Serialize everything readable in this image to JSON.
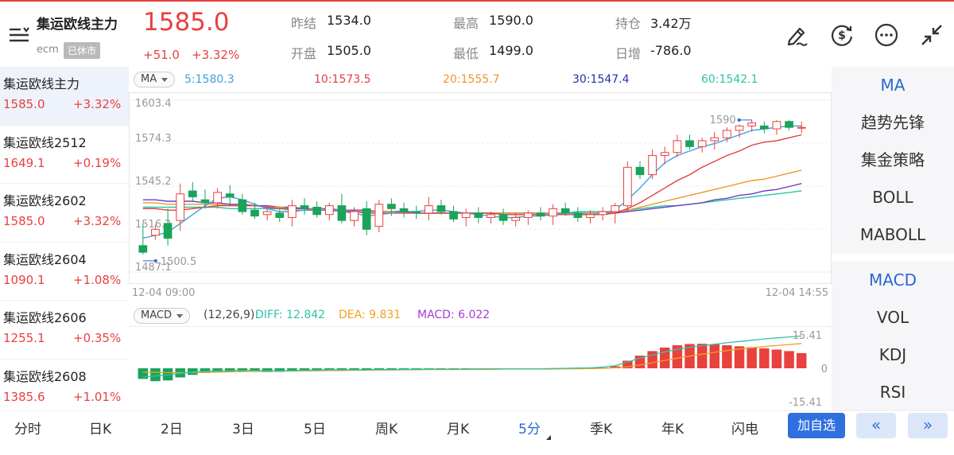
{
  "header": {
    "title": "集运欧线主力",
    "exchange": "ecm",
    "status": "已休市",
    "last_price": "1585.0",
    "change": "+51.0",
    "change_pct": "+3.32%",
    "stats": {
      "prev_close_label": "昨结",
      "prev_close": "1534.0",
      "high_label": "最高",
      "high": "1590.0",
      "open_interest_label": "持仓",
      "open_interest": "3.42万",
      "open_label": "开盘",
      "open": "1505.0",
      "low_label": "最低",
      "low": "1499.0",
      "daily_change_label": "日增",
      "daily_change": "-786.0"
    },
    "icons": [
      "menu-icon",
      "pen-icon",
      "currency-exchange-icon",
      "more-icon",
      "collapse-icon"
    ]
  },
  "contracts": [
    {
      "name": "集运欧线主力",
      "price": "1585.0",
      "pct": "+3.32%"
    },
    {
      "name": "集运欧线2512",
      "price": "1649.1",
      "pct": "+0.19%"
    },
    {
      "name": "集运欧线2602",
      "price": "1585.0",
      "pct": "+3.32%"
    },
    {
      "name": "集运欧线2604",
      "price": "1090.1",
      "pct": "+1.08%"
    },
    {
      "name": "集运欧线2606",
      "price": "1255.1",
      "pct": "+0.35%"
    },
    {
      "name": "集运欧线2608",
      "price": "1385.6",
      "pct": "+1.01%"
    }
  ],
  "ma_bar": {
    "selector": "MA",
    "ma5": "5:1580.3",
    "ma10": "10:1573.5",
    "ma20": "20:1555.7",
    "ma30": "30:1547.4",
    "ma60": "60:1542.1"
  },
  "chart_data": {
    "type": "candlestick",
    "y_ticks": [
      "1603.4",
      "1574.3",
      "1545.2",
      "1516.2",
      "1487.1"
    ],
    "ylim": [
      1487.1,
      1603.4
    ],
    "max_label": "1590",
    "min_label": "1500.5",
    "start_time": "12-04 09:00",
    "end_time": "12-04 14:55",
    "colors": {
      "up": "#e8413e",
      "down": "#1aa35a",
      "ma5": "#3fa0e0",
      "ma10": "#e04040",
      "ma20": "#f0962a",
      "ma30": "#6a3fc0",
      "ma60": "#2ec4a8"
    },
    "candles": [
      [
        1505,
        1520,
        1499,
        1500.5
      ],
      [
        1512,
        1519,
        1509,
        1516
      ],
      [
        1520,
        1530,
        1505,
        1510
      ],
      [
        1522,
        1547,
        1515,
        1540
      ],
      [
        1542,
        1548,
        1535,
        1538
      ],
      [
        1536,
        1543,
        1530,
        1534
      ],
      [
        1534,
        1544,
        1530,
        1541
      ],
      [
        1540,
        1546,
        1532,
        1538
      ],
      [
        1536,
        1540,
        1526,
        1528
      ],
      [
        1529,
        1534,
        1523,
        1525
      ],
      [
        1526,
        1532,
        1522,
        1528
      ],
      [
        1527,
        1531,
        1521,
        1524
      ],
      [
        1524,
        1536,
        1518,
        1532
      ],
      [
        1532,
        1537,
        1526,
        1530
      ],
      [
        1531,
        1535,
        1524,
        1526
      ],
      [
        1526,
        1534,
        1522,
        1532
      ],
      [
        1532,
        1540,
        1520,
        1522
      ],
      [
        1522,
        1531,
        1518,
        1528
      ],
      [
        1530,
        1535,
        1512,
        1516
      ],
      [
        1518,
        1536,
        1514,
        1533
      ],
      [
        1533,
        1537,
        1525,
        1530
      ],
      [
        1530,
        1534,
        1524,
        1528
      ],
      [
        1528,
        1532,
        1523,
        1527
      ],
      [
        1527,
        1538,
        1522,
        1532
      ],
      [
        1532,
        1536,
        1526,
        1528
      ],
      [
        1528,
        1532,
        1521,
        1523
      ],
      [
        1524,
        1530,
        1518,
        1527
      ],
      [
        1527,
        1531,
        1520,
        1524
      ],
      [
        1524,
        1528,
        1520,
        1526
      ],
      [
        1526,
        1530,
        1519,
        1522
      ],
      [
        1522,
        1527,
        1518,
        1524
      ],
      [
        1524,
        1529,
        1519,
        1527
      ],
      [
        1527,
        1531,
        1522,
        1525
      ],
      [
        1525,
        1533,
        1519,
        1530
      ],
      [
        1530,
        1534,
        1525,
        1527
      ],
      [
        1527,
        1531,
        1521,
        1524
      ],
      [
        1524,
        1529,
        1520,
        1526
      ],
      [
        1526,
        1531,
        1522,
        1528
      ],
      [
        1528,
        1534,
        1520,
        1532
      ],
      [
        1532,
        1562,
        1528,
        1558
      ],
      [
        1558,
        1562,
        1550,
        1553
      ],
      [
        1553,
        1570,
        1550,
        1566
      ],
      [
        1566,
        1572,
        1560,
        1568
      ],
      [
        1568,
        1580,
        1565,
        1576
      ],
      [
        1576,
        1580,
        1570,
        1572
      ],
      [
        1572,
        1578,
        1568,
        1576
      ],
      [
        1576,
        1582,
        1570,
        1578
      ],
      [
        1578,
        1585,
        1575,
        1583
      ],
      [
        1583,
        1587,
        1578,
        1586
      ],
      [
        1586,
        1590,
        1582,
        1588
      ],
      [
        1586,
        1589,
        1581,
        1584
      ],
      [
        1584,
        1590,
        1580,
        1589
      ],
      [
        1589,
        1590,
        1583,
        1585
      ],
      [
        1585,
        1589,
        1581,
        1585
      ]
    ],
    "ma5_vals": [
      1510,
      1512,
      1514,
      1520,
      1526,
      1532,
      1537,
      1538,
      1536,
      1533,
      1530,
      1528,
      1528,
      1529,
      1529,
      1529,
      1528,
      1527,
      1525,
      1526,
      1527,
      1528,
      1528,
      1529,
      1529,
      1528,
      1527,
      1526,
      1525,
      1524,
      1524,
      1525,
      1525,
      1526,
      1527,
      1527,
      1526,
      1527,
      1529,
      1536,
      1544,
      1553,
      1561,
      1566,
      1569,
      1572,
      1574,
      1577,
      1580,
      1583,
      1584,
      1585,
      1586,
      1586
    ],
    "ma10_vals": [
      1530,
      1530,
      1529,
      1529,
      1530,
      1531,
      1532,
      1532,
      1532,
      1532,
      1531,
      1530,
      1530,
      1530,
      1529,
      1529,
      1528,
      1528,
      1527,
      1527,
      1527,
      1527,
      1527,
      1527,
      1527,
      1527,
      1527,
      1527,
      1527,
      1526,
      1526,
      1526,
      1526,
      1526,
      1526,
      1526,
      1526,
      1526,
      1527,
      1530,
      1534,
      1539,
      1544,
      1549,
      1553,
      1558,
      1562,
      1566,
      1569,
      1573,
      1575,
      1576,
      1578,
      1580
    ],
    "ma20_vals": [
      1534,
      1534,
      1533,
      1533,
      1533,
      1533,
      1533,
      1532,
      1532,
      1532,
      1531,
      1531,
      1530,
      1530,
      1530,
      1529,
      1529,
      1528,
      1528,
      1528,
      1528,
      1527,
      1527,
      1527,
      1527,
      1527,
      1527,
      1527,
      1527,
      1527,
      1527,
      1527,
      1527,
      1527,
      1527,
      1527,
      1527,
      1527,
      1528,
      1529,
      1531,
      1533,
      1535,
      1537,
      1539,
      1541,
      1543,
      1545,
      1547,
      1549,
      1550,
      1552,
      1554,
      1556
    ],
    "ma30_vals": [
      1536,
      1536,
      1535,
      1535,
      1535,
      1534,
      1534,
      1533,
      1533,
      1532,
      1532,
      1531,
      1531,
      1530,
      1530,
      1530,
      1529,
      1529,
      1529,
      1528,
      1528,
      1528,
      1527,
      1527,
      1527,
      1527,
      1527,
      1527,
      1527,
      1527,
      1527,
      1527,
      1527,
      1527,
      1527,
      1527,
      1527,
      1527,
      1527,
      1528,
      1529,
      1530,
      1531,
      1532,
      1533,
      1534,
      1536,
      1537,
      1539,
      1540,
      1542,
      1543,
      1545,
      1547
    ],
    "ma60_vals": [
      1531,
      1531,
      1531,
      1531,
      1531,
      1531,
      1531,
      1530,
      1530,
      1530,
      1530,
      1530,
      1529,
      1529,
      1529,
      1529,
      1529,
      1528,
      1528,
      1528,
      1528,
      1528,
      1527,
      1527,
      1527,
      1527,
      1527,
      1527,
      1527,
      1527,
      1527,
      1527,
      1527,
      1527,
      1527,
      1528,
      1528,
      1528,
      1528,
      1529,
      1530,
      1531,
      1532,
      1532,
      1533,
      1534,
      1535,
      1536,
      1537,
      1538,
      1539,
      1540,
      1541,
      1542
    ]
  },
  "macd_bar": {
    "selector": "MACD",
    "params": "(12,26,9):",
    "diff": "DIFF: 12.842",
    "dea": "DEA: 9.831",
    "macd": "MACD: 6.022"
  },
  "macd_data": {
    "ylim": [
      -15.41,
      15.41
    ],
    "top_label": "15.41",
    "zero_label": "0",
    "bottom_label": "-15.41",
    "hist": [
      -4.2,
      -5.1,
      -4.8,
      -3.6,
      -2.6,
      -1.8,
      -1.5,
      -1.4,
      -1.3,
      -1.4,
      -1.5,
      -1.4,
      -1.2,
      -1.0,
      -0.9,
      -0.8,
      -0.7,
      -0.6,
      -0.6,
      -0.5,
      -0.4,
      -0.4,
      -0.3,
      -0.3,
      -0.3,
      -0.3,
      -0.3,
      -0.3,
      -0.3,
      -0.2,
      -0.2,
      -0.2,
      -0.2,
      -0.1,
      -0.1,
      -0.1,
      -0.1,
      0.3,
      0.8,
      3.0,
      5.0,
      6.8,
      8.2,
      9.1,
      9.6,
      9.7,
      9.5,
      9.1,
      8.7,
      8.3,
      7.9,
      7.4,
      6.8,
      6.0
    ],
    "diff_vals": [
      -3.5,
      -3.0,
      -2.6,
      -2.0,
      -1.5,
      -1.2,
      -1.0,
      -0.9,
      -0.8,
      -0.9,
      -1.0,
      -1.0,
      -0.9,
      -0.8,
      -0.7,
      -0.6,
      -0.6,
      -0.6,
      -0.6,
      -0.5,
      -0.5,
      -0.4,
      -0.4,
      -0.3,
      -0.3,
      -0.3,
      -0.3,
      -0.2,
      -0.2,
      -0.2,
      -0.2,
      -0.2,
      -0.2,
      -0.1,
      0.0,
      0.1,
      0.2,
      0.5,
      1.0,
      2.5,
      4.0,
      5.3,
      6.5,
      7.5,
      8.3,
      9.0,
      9.5,
      10.1,
      10.6,
      11.1,
      11.6,
      12.0,
      12.4,
      12.8
    ],
    "dea_vals": [
      -1.5,
      -1.6,
      -1.7,
      -1.7,
      -1.7,
      -1.6,
      -1.5,
      -1.4,
      -1.3,
      -1.2,
      -1.2,
      -1.1,
      -1.1,
      -1.0,
      -1.0,
      -0.9,
      -0.9,
      -0.8,
      -0.8,
      -0.7,
      -0.7,
      -0.6,
      -0.6,
      -0.5,
      -0.5,
      -0.5,
      -0.4,
      -0.4,
      -0.4,
      -0.3,
      -0.3,
      -0.3,
      -0.3,
      -0.3,
      -0.2,
      -0.2,
      -0.1,
      0.0,
      0.2,
      0.6,
      1.3,
      2.2,
      3.1,
      4.0,
      4.8,
      5.6,
      6.3,
      7.0,
      7.6,
      8.1,
      8.6,
      9.0,
      9.4,
      9.8
    ],
    "colors": {
      "pos": "#e8413e",
      "neg": "#1aa35a",
      "diff": "#2ec4a8",
      "dea": "#f0a020"
    }
  },
  "indicators_top": [
    "MA",
    "趋势先锋",
    "集金策略",
    "BOLL",
    "MABOLL"
  ],
  "indicators_bottom": [
    "MACD",
    "VOL",
    "KDJ",
    "RSI"
  ],
  "tabs": [
    "分时",
    "日K",
    "2日",
    "3日",
    "5日",
    "周K",
    "月K",
    "5分",
    "季K",
    "年K",
    "闪电"
  ],
  "active_tab": "5分",
  "add_watch": "加自选",
  "nav_prev": "«",
  "nav_next": "»"
}
